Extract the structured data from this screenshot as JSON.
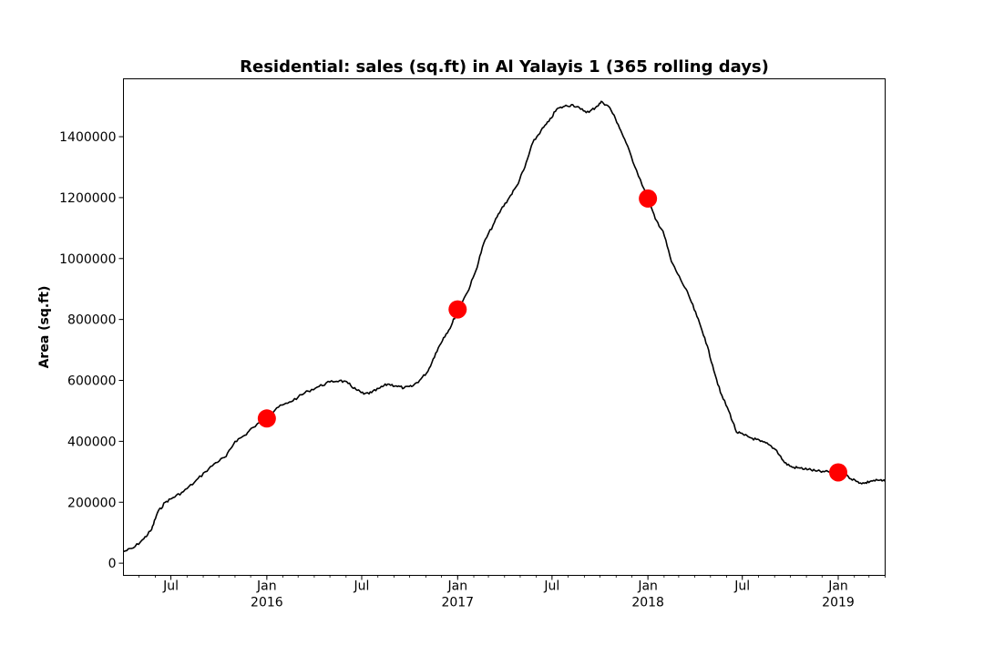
{
  "chart_data": {
    "type": "line",
    "title": "Residential: sales (sq.ft) in Al Yalayis 1 (365 rolling days)",
    "xlabel": "",
    "ylabel": "Area (sq.ft)",
    "xlim": [
      "2015-04-01",
      "2019-04-01"
    ],
    "ylim": [
      -40000,
      1590000
    ],
    "grid": false,
    "line_color": "#000000",
    "marker_color": "#ff0000",
    "y_ticks": [
      {
        "value": 0,
        "label": "0"
      },
      {
        "value": 200000,
        "label": "200000"
      },
      {
        "value": 400000,
        "label": "400000"
      },
      {
        "value": 600000,
        "label": "600000"
      },
      {
        "value": 800000,
        "label": "800000"
      },
      {
        "value": 1000000,
        "label": "1000000"
      },
      {
        "value": 1200000,
        "label": "1200000"
      },
      {
        "value": 1400000,
        "label": "1400000"
      }
    ],
    "x_ticks": [
      {
        "date": "2015-07-01",
        "label": "Jul",
        "year": ""
      },
      {
        "date": "2016-01-01",
        "label": "Jan",
        "year": "2016"
      },
      {
        "date": "2016-07-01",
        "label": "Jul",
        "year": ""
      },
      {
        "date": "2017-01-01",
        "label": "Jan",
        "year": "2017"
      },
      {
        "date": "2017-07-01",
        "label": "Jul",
        "year": ""
      },
      {
        "date": "2018-01-01",
        "label": "Jan",
        "year": "2018"
      },
      {
        "date": "2018-07-01",
        "label": "Jul",
        "year": ""
      },
      {
        "date": "2019-01-01",
        "label": "Jan",
        "year": "2019"
      }
    ],
    "series": [
      {
        "points": [
          [
            "2015-04-01",
            38000
          ],
          [
            "2015-04-20",
            50000
          ],
          [
            "2015-05-10",
            80000
          ],
          [
            "2015-05-25",
            110000
          ],
          [
            "2015-06-05",
            165000
          ],
          [
            "2015-06-20",
            200000
          ],
          [
            "2015-07-05",
            215000
          ],
          [
            "2015-07-25",
            235000
          ],
          [
            "2015-08-15",
            265000
          ],
          [
            "2015-09-05",
            300000
          ],
          [
            "2015-09-25",
            330000
          ],
          [
            "2015-10-15",
            350000
          ],
          [
            "2015-11-01",
            400000
          ],
          [
            "2015-11-20",
            420000
          ],
          [
            "2015-12-05",
            445000
          ],
          [
            "2016-01-01",
            475000
          ],
          [
            "2016-01-20",
            510000
          ],
          [
            "2016-02-10",
            525000
          ],
          [
            "2016-03-01",
            545000
          ],
          [
            "2016-03-20",
            565000
          ],
          [
            "2016-04-10",
            580000
          ],
          [
            "2016-05-01",
            595000
          ],
          [
            "2016-05-20",
            600000
          ],
          [
            "2016-06-05",
            590000
          ],
          [
            "2016-06-20",
            570000
          ],
          [
            "2016-07-05",
            555000
          ],
          [
            "2016-07-20",
            560000
          ],
          [
            "2016-08-05",
            575000
          ],
          [
            "2016-08-20",
            588000
          ],
          [
            "2016-09-05",
            582000
          ],
          [
            "2016-09-20",
            575000
          ],
          [
            "2016-10-05",
            580000
          ],
          [
            "2016-10-20",
            600000
          ],
          [
            "2016-11-05",
            630000
          ],
          [
            "2016-11-20",
            690000
          ],
          [
            "2016-12-05",
            740000
          ],
          [
            "2016-12-20",
            780000
          ],
          [
            "2017-01-01",
            833000
          ],
          [
            "2017-01-20",
            890000
          ],
          [
            "2017-02-05",
            960000
          ],
          [
            "2017-02-20",
            1050000
          ],
          [
            "2017-03-10",
            1110000
          ],
          [
            "2017-03-25",
            1160000
          ],
          [
            "2017-04-10",
            1200000
          ],
          [
            "2017-04-25",
            1240000
          ],
          [
            "2017-05-10",
            1300000
          ],
          [
            "2017-05-25",
            1380000
          ],
          [
            "2017-06-10",
            1420000
          ],
          [
            "2017-06-25",
            1450000
          ],
          [
            "2017-07-10",
            1490000
          ],
          [
            "2017-07-25",
            1500000
          ],
          [
            "2017-08-10",
            1505000
          ],
          [
            "2017-08-25",
            1490000
          ],
          [
            "2017-09-10",
            1480000
          ],
          [
            "2017-09-25",
            1500000
          ],
          [
            "2017-10-05",
            1515000
          ],
          [
            "2017-10-20",
            1495000
          ],
          [
            "2017-11-05",
            1440000
          ],
          [
            "2017-11-20",
            1380000
          ],
          [
            "2017-12-10",
            1290000
          ],
          [
            "2018-01-01",
            1197000
          ],
          [
            "2018-01-15",
            1130000
          ],
          [
            "2018-01-30",
            1090000
          ],
          [
            "2018-02-15",
            990000
          ],
          [
            "2018-03-05",
            930000
          ],
          [
            "2018-03-20",
            880000
          ],
          [
            "2018-04-05",
            810000
          ],
          [
            "2018-04-20",
            740000
          ],
          [
            "2018-05-05",
            650000
          ],
          [
            "2018-05-20",
            560000
          ],
          [
            "2018-06-05",
            500000
          ],
          [
            "2018-06-20",
            430000
          ],
          [
            "2018-07-05",
            420000
          ],
          [
            "2018-07-20",
            410000
          ],
          [
            "2018-08-05",
            400000
          ],
          [
            "2018-08-20",
            390000
          ],
          [
            "2018-09-05",
            370000
          ],
          [
            "2018-09-20",
            330000
          ],
          [
            "2018-10-05",
            315000
          ],
          [
            "2018-10-20",
            312000
          ],
          [
            "2018-11-05",
            308000
          ],
          [
            "2018-11-20",
            302000
          ],
          [
            "2018-12-05",
            300000
          ],
          [
            "2019-01-01",
            298000
          ],
          [
            "2019-01-20",
            285000
          ],
          [
            "2019-02-05",
            268000
          ],
          [
            "2019-02-20",
            262000
          ],
          [
            "2019-03-05",
            270000
          ],
          [
            "2019-03-20",
            272000
          ],
          [
            "2019-04-01",
            268000
          ]
        ]
      }
    ],
    "markers": [
      {
        "date": "2016-01-01",
        "value": 475000
      },
      {
        "date": "2017-01-01",
        "value": 833000
      },
      {
        "date": "2018-01-01",
        "value": 1197000
      },
      {
        "date": "2019-01-01",
        "value": 298000
      }
    ]
  }
}
